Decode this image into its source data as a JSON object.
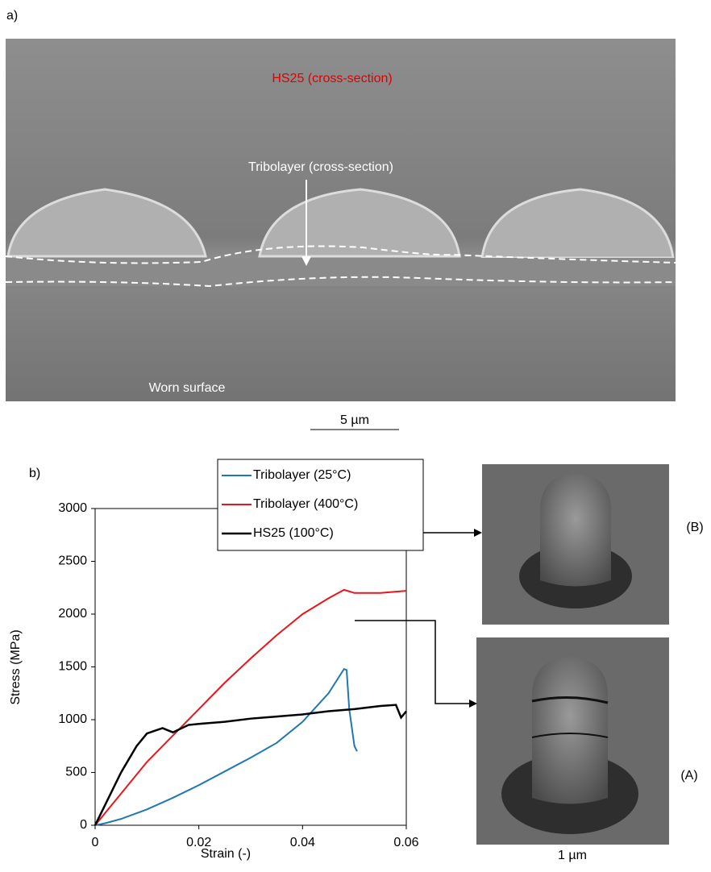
{
  "figure": {
    "panel_a": {
      "label": "a)",
      "top_text": "HS25 (cross-section)",
      "middle_text": "Tribolayer (cross-section)",
      "bottom_text": "Worn surface",
      "scale_bar": "5 µm"
    },
    "panel_b": {
      "label": "b)"
    },
    "insets": {
      "upper_label": "(B)",
      "lower_label": "(A)",
      "scale_bar": "1 µm"
    }
  },
  "chart_data": {
    "type": "line",
    "xlabel": "Strain (-)",
    "ylabel": "Stress (MPa)",
    "xlim": [
      0,
      0.06
    ],
    "xticks": [
      0,
      0.02,
      0.04,
      0.06
    ],
    "ylim": [
      0,
      3000
    ],
    "yticks": [
      0,
      500,
      1000,
      1500,
      2000,
      2500,
      3000
    ],
    "legend": "top",
    "series": [
      {
        "name": "Tribolayer (25°C)",
        "color": "#1f77b4",
        "x": [
          0,
          0.002,
          0.005,
          0.01,
          0.015,
          0.02,
          0.025,
          0.03,
          0.035,
          0.04,
          0.045,
          0.048,
          0.0485,
          0.049,
          0.05,
          0.0505
        ],
        "values": [
          0,
          20,
          60,
          150,
          260,
          380,
          510,
          640,
          780,
          980,
          1250,
          1480,
          1470,
          1100,
          750,
          700
        ]
      },
      {
        "name": "Tribolayer (400°C)",
        "color": "#e8151b",
        "x": [
          0,
          0.002,
          0.005,
          0.01,
          0.015,
          0.02,
          0.025,
          0.03,
          0.035,
          0.04,
          0.045,
          0.048,
          0.05,
          0.055,
          0.06
        ],
        "values": [
          0,
          120,
          300,
          600,
          850,
          1100,
          1350,
          1580,
          1800,
          2000,
          2150,
          2230,
          2200,
          2200,
          2220
        ]
      },
      {
        "name": "HS25 (100°C)",
        "color": "#000000",
        "x": [
          0,
          0.002,
          0.005,
          0.008,
          0.01,
          0.013,
          0.015,
          0.018,
          0.02,
          0.025,
          0.03,
          0.035,
          0.04,
          0.045,
          0.05,
          0.055,
          0.058,
          0.059,
          0.06
        ],
        "values": [
          0,
          200,
          500,
          750,
          870,
          920,
          880,
          950,
          960,
          980,
          1010,
          1030,
          1050,
          1080,
          1100,
          1130,
          1140,
          1020,
          1080
        ]
      }
    ]
  }
}
